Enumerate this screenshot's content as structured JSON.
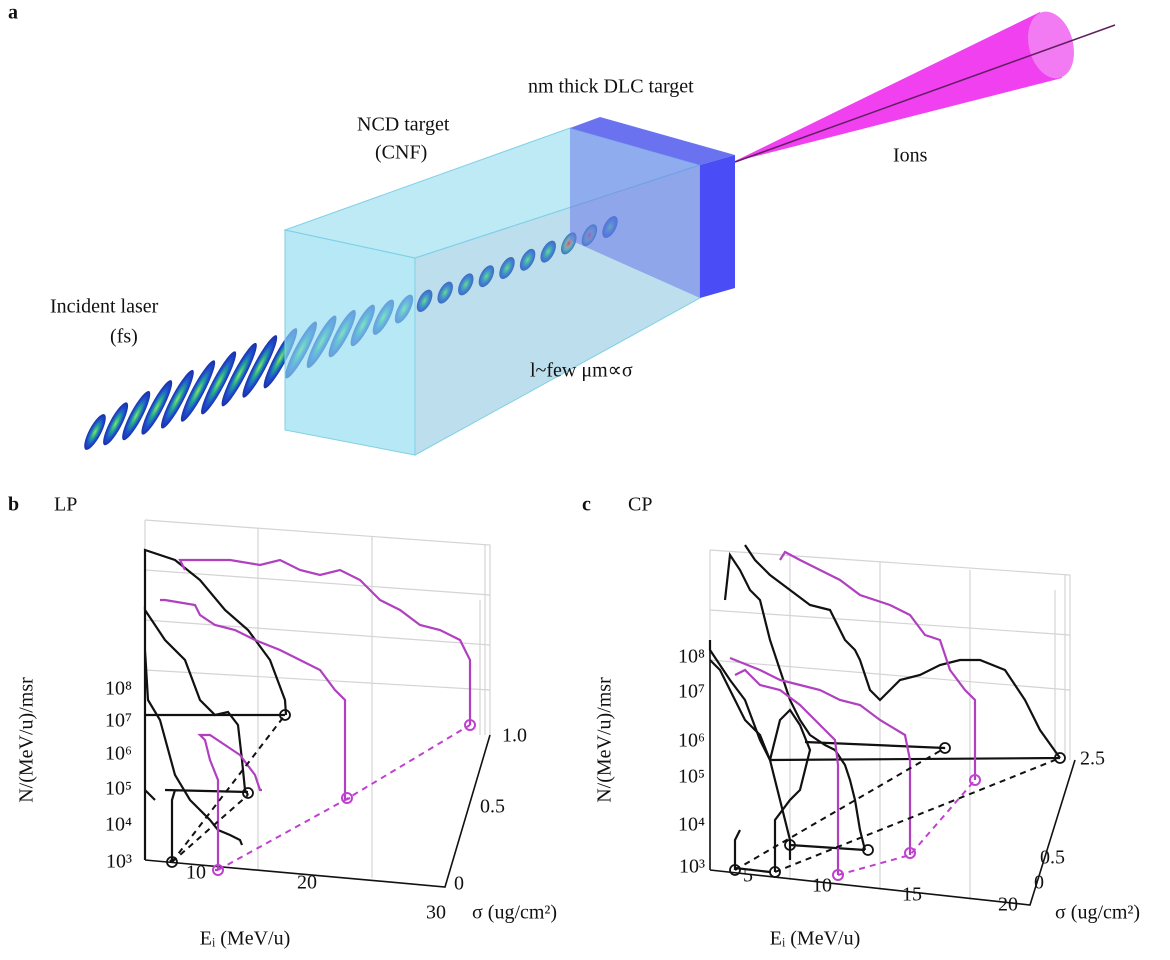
{
  "panel_a": {
    "label": "a",
    "dlc_target": "nm thick DLC target",
    "ncd_target": "NCD target",
    "ncd_note": "(CNF)",
    "laser": "Incident laser",
    "laser_note": "(fs)",
    "ions": "Ions",
    "thickness": "l~few μm∝σ"
  },
  "panel_b": {
    "label": "b",
    "polarization": "LP",
    "y_label": "N/(MeV/u)/msr",
    "x_label": "Eᵢ (MeV/u)",
    "z_label": "σ (ug/cm²)",
    "y_ticks": [
      "10⁸",
      "10⁷",
      "10⁶",
      "10⁵",
      "10⁴",
      "10³"
    ],
    "x_ticks": [
      "10",
      "20",
      "30"
    ],
    "z_ticks": [
      "1.0",
      "0.5",
      "0"
    ]
  },
  "panel_c": {
    "label": "c",
    "polarization": "CP",
    "y_label": "N/(MeV/u)/msr",
    "x_label": "Eᵢ (MeV/u)",
    "z_label": "σ (ug/cm²)",
    "y_ticks": [
      "10⁸",
      "10⁷",
      "10⁶",
      "10⁵",
      "10⁴",
      "10³"
    ],
    "x_ticks": [
      "5",
      "10",
      "15",
      "20"
    ],
    "z_ticks": [
      "2.5",
      "0.5",
      "0"
    ]
  }
}
